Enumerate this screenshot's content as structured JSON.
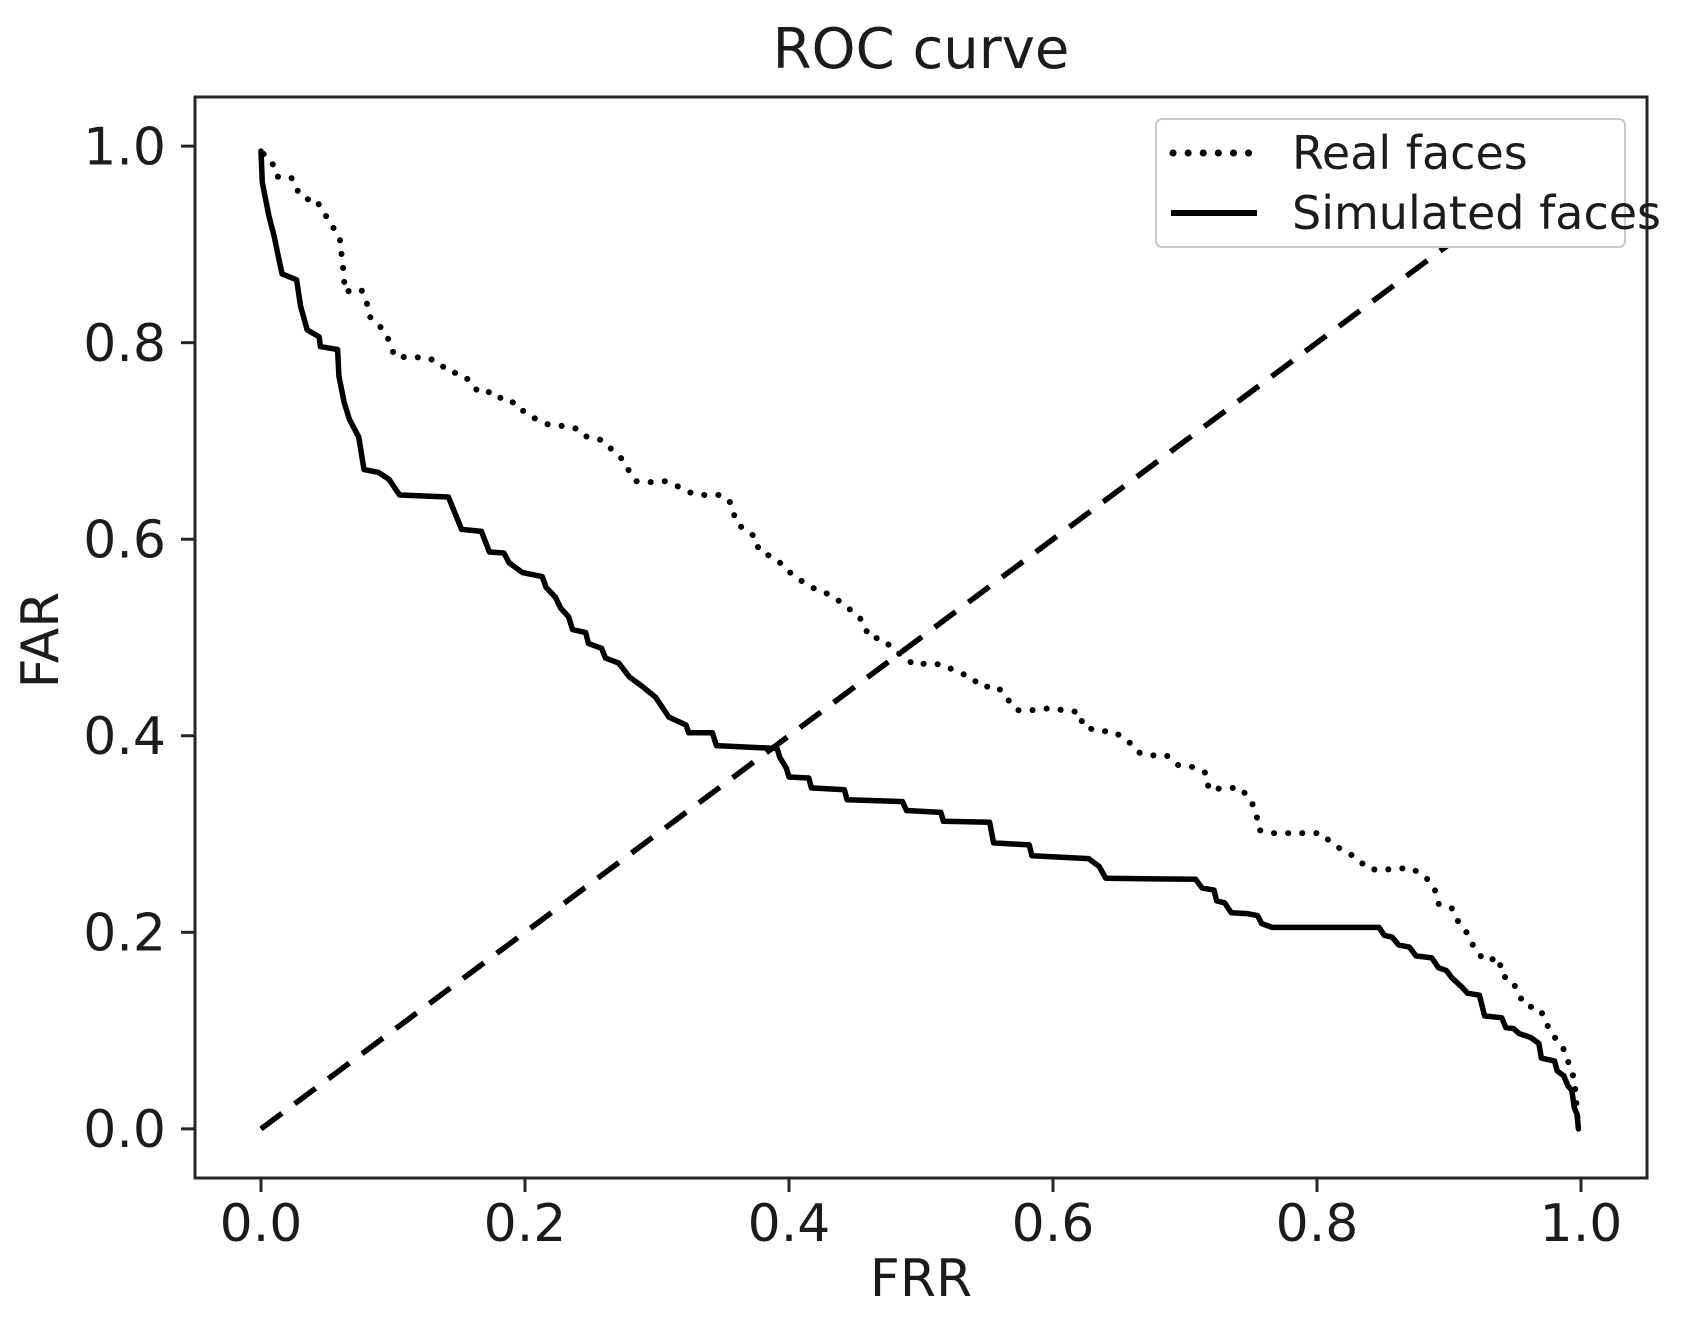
{
  "chart_data": {
    "type": "line",
    "title": "ROC curve",
    "xlabel": "FRR",
    "ylabel": "FAR",
    "xlim": [
      -0.05,
      1.05
    ],
    "ylim": [
      -0.05,
      1.05
    ],
    "grid": false,
    "legend_position": "upper right",
    "line_color": "#000000",
    "axis_color": "#262626",
    "x_ticks": [
      0.0,
      0.2,
      0.4,
      0.6,
      0.8,
      1.0
    ],
    "x_tick_labels": [
      "0.0",
      "0.2",
      "0.4",
      "0.6",
      "0.8",
      "1.0"
    ],
    "y_ticks": [
      0.0,
      0.2,
      0.4,
      0.6,
      0.8,
      1.0
    ],
    "y_tick_labels": [
      "0.0",
      "0.2",
      "0.4",
      "0.6",
      "0.8",
      "1.0"
    ],
    "series": [
      {
        "name": "Real faces",
        "style": "dotted",
        "color": "#000000",
        "in_legend": true,
        "points": [
          [
            0.002,
            0.992
          ],
          [
            0.008,
            0.985
          ],
          [
            0.012,
            0.969
          ],
          [
            0.023,
            0.968
          ],
          [
            0.027,
            0.956
          ],
          [
            0.033,
            0.946
          ],
          [
            0.042,
            0.946
          ],
          [
            0.046,
            0.934
          ],
          [
            0.053,
            0.923
          ],
          [
            0.057,
            0.91
          ],
          [
            0.061,
            0.902
          ],
          [
            0.061,
            0.885
          ],
          [
            0.063,
            0.87
          ],
          [
            0.063,
            0.852
          ],
          [
            0.076,
            0.854
          ],
          [
            0.08,
            0.842
          ],
          [
            0.082,
            0.827
          ],
          [
            0.088,
            0.819
          ],
          [
            0.092,
            0.814
          ],
          [
            0.098,
            0.8
          ],
          [
            0.101,
            0.786
          ],
          [
            0.112,
            0.785
          ],
          [
            0.125,
            0.785
          ],
          [
            0.135,
            0.78
          ],
          [
            0.141,
            0.771
          ],
          [
            0.152,
            0.768
          ],
          [
            0.159,
            0.76
          ],
          [
            0.165,
            0.749
          ],
          [
            0.177,
            0.75
          ],
          [
            0.184,
            0.74
          ],
          [
            0.193,
            0.739
          ],
          [
            0.201,
            0.727
          ],
          [
            0.217,
            0.717
          ],
          [
            0.23,
            0.715
          ],
          [
            0.241,
            0.712
          ],
          [
            0.247,
            0.704
          ],
          [
            0.258,
            0.701
          ],
          [
            0.266,
            0.691
          ],
          [
            0.274,
            0.681
          ],
          [
            0.279,
            0.669
          ],
          [
            0.284,
            0.659
          ],
          [
            0.294,
            0.658
          ],
          [
            0.307,
            0.659
          ],
          [
            0.317,
            0.653
          ],
          [
            0.326,
            0.647
          ],
          [
            0.336,
            0.645
          ],
          [
            0.349,
            0.645
          ],
          [
            0.356,
            0.637
          ],
          [
            0.36,
            0.617
          ],
          [
            0.366,
            0.61
          ],
          [
            0.375,
            0.602
          ],
          [
            0.377,
            0.589
          ],
          [
            0.391,
            0.579
          ],
          [
            0.404,
            0.562
          ],
          [
            0.419,
            0.55
          ],
          [
            0.432,
            0.543
          ],
          [
            0.444,
            0.531
          ],
          [
            0.455,
            0.518
          ],
          [
            0.461,
            0.5
          ],
          [
            0.47,
            0.499
          ],
          [
            0.483,
            0.484
          ],
          [
            0.495,
            0.472
          ],
          [
            0.506,
            0.474
          ],
          [
            0.517,
            0.472
          ],
          [
            0.529,
            0.464
          ],
          [
            0.538,
            0.46
          ],
          [
            0.545,
            0.45
          ],
          [
            0.558,
            0.45
          ],
          [
            0.565,
            0.438
          ],
          [
            0.573,
            0.426
          ],
          [
            0.584,
            0.426
          ],
          [
            0.597,
            0.428
          ],
          [
            0.608,
            0.426
          ],
          [
            0.62,
            0.424
          ],
          [
            0.623,
            0.409
          ],
          [
            0.635,
            0.405
          ],
          [
            0.646,
            0.404
          ],
          [
            0.656,
            0.396
          ],
          [
            0.665,
            0.383
          ],
          [
            0.675,
            0.38
          ],
          [
            0.686,
            0.38
          ],
          [
            0.695,
            0.37
          ],
          [
            0.707,
            0.368
          ],
          [
            0.716,
            0.362
          ],
          [
            0.718,
            0.345
          ],
          [
            0.73,
            0.347
          ],
          [
            0.742,
            0.347
          ],
          [
            0.75,
            0.334
          ],
          [
            0.754,
            0.321
          ],
          [
            0.756,
            0.304
          ],
          [
            0.766,
            0.301
          ],
          [
            0.789,
            0.301
          ],
          [
            0.803,
            0.301
          ],
          [
            0.811,
            0.291
          ],
          [
            0.82,
            0.283
          ],
          [
            0.83,
            0.276
          ],
          [
            0.838,
            0.265
          ],
          [
            0.848,
            0.263
          ],
          [
            0.86,
            0.265
          ],
          [
            0.872,
            0.265
          ],
          [
            0.883,
            0.255
          ],
          [
            0.889,
            0.245
          ],
          [
            0.892,
            0.229
          ],
          [
            0.902,
            0.225
          ],
          [
            0.904,
            0.217
          ],
          [
            0.909,
            0.207
          ],
          [
            0.915,
            0.197
          ],
          [
            0.919,
            0.184
          ],
          [
            0.927,
            0.171
          ],
          [
            0.938,
            0.174
          ],
          [
            0.94,
            0.156
          ],
          [
            0.948,
            0.151
          ],
          [
            0.953,
            0.136
          ],
          [
            0.958,
            0.125
          ],
          [
            0.968,
            0.123
          ],
          [
            0.973,
            0.112
          ],
          [
            0.976,
            0.1
          ],
          [
            0.982,
            0.09
          ],
          [
            0.989,
            0.077
          ],
          [
            0.991,
            0.064
          ],
          [
            0.995,
            0.051
          ],
          [
            0.998,
            0.0
          ]
        ]
      },
      {
        "name": "Simulated faces",
        "style": "solid",
        "color": "#000000",
        "in_legend": true,
        "points": [
          [
            0.0,
            0.995
          ],
          [
            0.001,
            0.963
          ],
          [
            0.006,
            0.929
          ],
          [
            0.01,
            0.908
          ],
          [
            0.014,
            0.882
          ],
          [
            0.016,
            0.87
          ],
          [
            0.027,
            0.864
          ],
          [
            0.03,
            0.837
          ],
          [
            0.035,
            0.813
          ],
          [
            0.044,
            0.806
          ],
          [
            0.045,
            0.796
          ],
          [
            0.058,
            0.793
          ],
          [
            0.059,
            0.766
          ],
          [
            0.063,
            0.739
          ],
          [
            0.067,
            0.722
          ],
          [
            0.074,
            0.704
          ],
          [
            0.078,
            0.671
          ],
          [
            0.089,
            0.668
          ],
          [
            0.097,
            0.661
          ],
          [
            0.105,
            0.645
          ],
          [
            0.142,
            0.643
          ],
          [
            0.152,
            0.61
          ],
          [
            0.167,
            0.608
          ],
          [
            0.173,
            0.587
          ],
          [
            0.184,
            0.586
          ],
          [
            0.188,
            0.576
          ],
          [
            0.198,
            0.566
          ],
          [
            0.213,
            0.562
          ],
          [
            0.216,
            0.551
          ],
          [
            0.223,
            0.541
          ],
          [
            0.227,
            0.53
          ],
          [
            0.233,
            0.521
          ],
          [
            0.236,
            0.508
          ],
          [
            0.246,
            0.505
          ],
          [
            0.248,
            0.494
          ],
          [
            0.258,
            0.489
          ],
          [
            0.261,
            0.479
          ],
          [
            0.271,
            0.474
          ],
          [
            0.279,
            0.46
          ],
          [
            0.289,
            0.45
          ],
          [
            0.299,
            0.439
          ],
          [
            0.309,
            0.419
          ],
          [
            0.322,
            0.411
          ],
          [
            0.324,
            0.403
          ],
          [
            0.342,
            0.403
          ],
          [
            0.345,
            0.39
          ],
          [
            0.391,
            0.387
          ],
          [
            0.393,
            0.378
          ],
          [
            0.398,
            0.367
          ],
          [
            0.4,
            0.358
          ],
          [
            0.415,
            0.357
          ],
          [
            0.417,
            0.347
          ],
          [
            0.442,
            0.345
          ],
          [
            0.444,
            0.335
          ],
          [
            0.486,
            0.333
          ],
          [
            0.489,
            0.324
          ],
          [
            0.515,
            0.322
          ],
          [
            0.517,
            0.313
          ],
          [
            0.552,
            0.312
          ],
          [
            0.555,
            0.291
          ],
          [
            0.582,
            0.289
          ],
          [
            0.584,
            0.278
          ],
          [
            0.627,
            0.275
          ],
          [
            0.635,
            0.267
          ],
          [
            0.64,
            0.255
          ],
          [
            0.708,
            0.254
          ],
          [
            0.713,
            0.245
          ],
          [
            0.722,
            0.243
          ],
          [
            0.724,
            0.232
          ],
          [
            0.73,
            0.23
          ],
          [
            0.735,
            0.22
          ],
          [
            0.747,
            0.219
          ],
          [
            0.755,
            0.217
          ],
          [
            0.758,
            0.209
          ],
          [
            0.766,
            0.205
          ],
          [
            0.847,
            0.205
          ],
          [
            0.851,
            0.197
          ],
          [
            0.857,
            0.195
          ],
          [
            0.862,
            0.187
          ],
          [
            0.87,
            0.185
          ],
          [
            0.875,
            0.176
          ],
          [
            0.887,
            0.174
          ],
          [
            0.892,
            0.164
          ],
          [
            0.898,
            0.161
          ],
          [
            0.902,
            0.154
          ],
          [
            0.91,
            0.144
          ],
          [
            0.914,
            0.138
          ],
          [
            0.923,
            0.136
          ],
          [
            0.927,
            0.115
          ],
          [
            0.94,
            0.113
          ],
          [
            0.943,
            0.103
          ],
          [
            0.949,
            0.102
          ],
          [
            0.953,
            0.097
          ],
          [
            0.962,
            0.093
          ],
          [
            0.968,
            0.087
          ],
          [
            0.97,
            0.072
          ],
          [
            0.98,
            0.069
          ],
          [
            0.982,
            0.059
          ],
          [
            0.987,
            0.054
          ],
          [
            0.99,
            0.044
          ],
          [
            0.993,
            0.039
          ],
          [
            0.995,
            0.021
          ],
          [
            0.997,
            0.015
          ],
          [
            0.998,
            0.0
          ]
        ]
      },
      {
        "name": "chance-diagonal",
        "style": "dashed",
        "color": "#000000",
        "in_legend": false,
        "points": [
          [
            0.0,
            0.0
          ],
          [
            1.0,
            1.0
          ]
        ]
      }
    ]
  }
}
